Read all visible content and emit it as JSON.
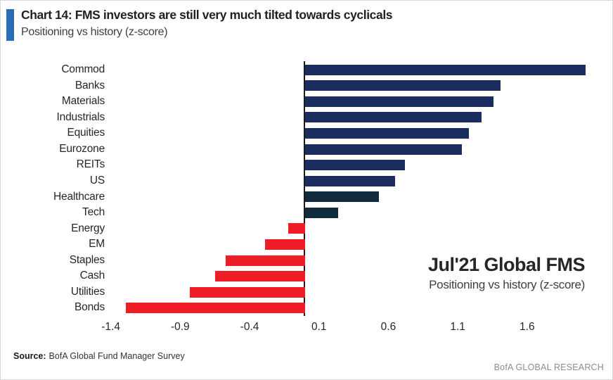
{
  "page": {
    "background": "#ffffff",
    "accent_color": "#2a6cb5"
  },
  "header": {
    "title": "Chart 14: FMS investors are still very much tilted towards cyclicals",
    "subtitle": "Positioning vs history (z-score)"
  },
  "chart_data": {
    "type": "bar",
    "orientation": "horizontal",
    "title": "Chart 14: FMS investors are still very much tilted towards cyclicals",
    "subtitle": "Positioning vs history (z-score)",
    "categories": [
      "Commod",
      "Banks",
      "Materials",
      "Industrials",
      "Equities",
      "Eurozone",
      "REITs",
      "US",
      "Healthcare",
      "Tech",
      "Energy",
      "EM",
      "Staples",
      "Cash",
      "Utilities",
      "Bonds"
    ],
    "values": [
      2.02,
      1.41,
      1.36,
      1.27,
      1.18,
      1.13,
      0.72,
      0.65,
      0.53,
      0.24,
      -0.12,
      -0.29,
      -0.57,
      -0.65,
      -0.83,
      -1.29
    ],
    "color_roles": [
      "positive",
      "positive",
      "positive",
      "positive",
      "positive",
      "positive",
      "positive",
      "positive",
      "defensive_dark",
      "defensive_dark",
      "negative",
      "negative",
      "negative",
      "negative",
      "negative",
      "negative"
    ],
    "colors": {
      "positive": "#1b2c5f",
      "defensive_dark": "#0f2b3d",
      "negative": "#ee1c25"
    },
    "xticks": [
      "-1.4",
      "-0.9",
      "-0.4",
      "0.1",
      "0.6",
      "1.1",
      "1.6"
    ],
    "xlim": [
      -1.55,
      2.2
    ],
    "xlabel": "",
    "ylabel": "",
    "grid": false,
    "legend": false,
    "annotation": {
      "title": "Jul'21 Global FMS",
      "subtitle": "Positioning vs history (z-score)"
    }
  },
  "footer": {
    "source_label": "Source:",
    "source_text": "BofA Global Fund Manager Survey",
    "brand": "BofA GLOBAL RESEARCH"
  }
}
